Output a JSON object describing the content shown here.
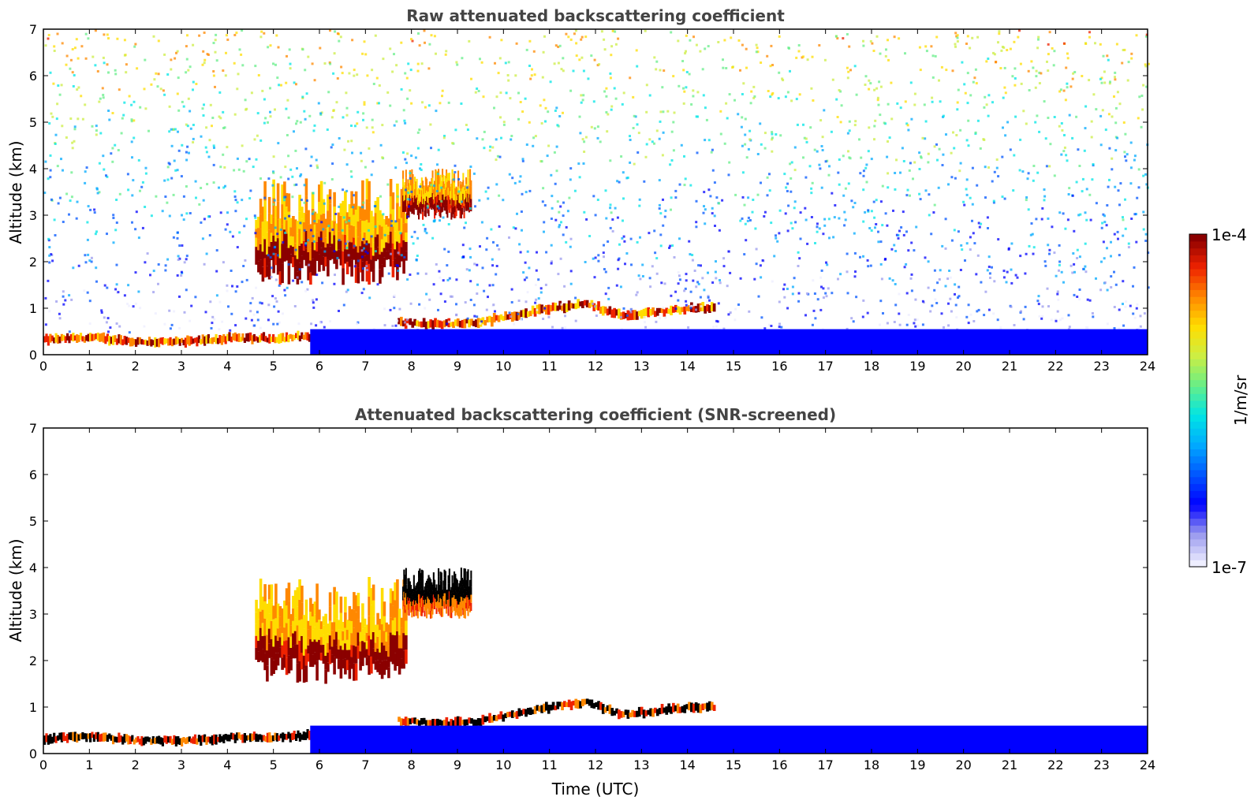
{
  "chart_data": [
    {
      "type": "heatmap",
      "title": "Raw attenuated backscattering coefficient",
      "xlabel": "",
      "ylabel": "Altitude (km)",
      "xlim": [
        0,
        24
      ],
      "ylim": [
        0,
        7
      ],
      "x_ticks": [
        "0",
        "1",
        "2",
        "3",
        "4",
        "5",
        "6",
        "7",
        "8",
        "9",
        "10",
        "11",
        "12",
        "13",
        "14",
        "15",
        "16",
        "17",
        "18",
        "19",
        "20",
        "21",
        "22",
        "23",
        "24"
      ],
      "y_ticks": [
        "0",
        "1",
        "2",
        "3",
        "4",
        "5",
        "6",
        "7"
      ],
      "features": [
        {
          "kind": "boundary_layer_top",
          "x": [
            0,
            1,
            2,
            3,
            4,
            5,
            5.8
          ],
          "y": [
            0.32,
            0.37,
            0.28,
            0.27,
            0.35,
            0.35,
            0.4
          ],
          "level": "high"
        },
        {
          "kind": "cloud_layer",
          "x_range": [
            4.6,
            7.9
          ],
          "y_range": [
            1.5,
            3.8
          ],
          "level": "high"
        },
        {
          "kind": "cloud_layer",
          "x_range": [
            7.8,
            9.3
          ],
          "y_range": [
            2.9,
            4.0
          ],
          "level": "high"
        },
        {
          "kind": "low_cloud_layer",
          "x": [
            7.7,
            8.5,
            9.5,
            10.2,
            11,
            11.8,
            12.5,
            13.2,
            14,
            14.6
          ],
          "y": [
            0.7,
            0.65,
            0.7,
            0.85,
            1.0,
            1.1,
            0.85,
            0.9,
            1.0,
            1.0
          ],
          "level": "high"
        },
        {
          "kind": "noise_region",
          "y_range": [
            0.5,
            7
          ],
          "level": "medium_to_high_with_altitude"
        },
        {
          "kind": "surface_layer",
          "x_range": [
            5.8,
            24
          ],
          "y_range": [
            0,
            0.55
          ],
          "level": "low"
        }
      ]
    },
    {
      "type": "heatmap",
      "title": "Attenuated backscattering coefficient (SNR-screened)",
      "xlabel": "Time (UTC)",
      "ylabel": "Altitude (km)",
      "xlim": [
        0,
        24
      ],
      "ylim": [
        0,
        7
      ],
      "x_ticks": [
        "0",
        "1",
        "2",
        "3",
        "4",
        "5",
        "6",
        "7",
        "8",
        "9",
        "10",
        "11",
        "12",
        "13",
        "14",
        "15",
        "16",
        "17",
        "18",
        "19",
        "20",
        "21",
        "22",
        "23",
        "24"
      ],
      "y_ticks": [
        "0",
        "1",
        "2",
        "3",
        "4",
        "5",
        "6",
        "7"
      ],
      "features": [
        {
          "kind": "boundary_layer_top",
          "x": [
            0,
            1,
            2,
            3,
            4,
            5,
            5.8
          ],
          "y": [
            0.32,
            0.37,
            0.28,
            0.27,
            0.35,
            0.35,
            0.4
          ],
          "level": "saturated"
        },
        {
          "kind": "cloud_layer",
          "x_range": [
            4.6,
            7.9
          ],
          "y_range": [
            1.5,
            3.8
          ],
          "level": "high"
        },
        {
          "kind": "cloud_layer",
          "x_range": [
            7.8,
            9.3
          ],
          "y_range": [
            2.9,
            4.0
          ],
          "level": "saturated"
        },
        {
          "kind": "low_cloud_layer",
          "x": [
            7.7,
            8.5,
            9.5,
            10.2,
            11,
            11.8,
            12.5,
            13.2,
            14,
            14.6
          ],
          "y": [
            0.7,
            0.65,
            0.7,
            0.85,
            1.0,
            1.1,
            0.85,
            0.9,
            1.0,
            1.0
          ],
          "level": "saturated"
        },
        {
          "kind": "surface_layer",
          "x_range": [
            5.8,
            24
          ],
          "y_range": [
            0,
            0.6
          ],
          "level": "low"
        }
      ]
    }
  ],
  "colorbar": {
    "label": "1/m/sr",
    "max_label": "1e-4",
    "min_label": "1e-7",
    "colors": [
      "#eeeeff",
      "#9999ee",
      "#0000ff",
      "#0055ff",
      "#00aaff",
      "#00e5e5",
      "#66ee88",
      "#ccee44",
      "#ffdd00",
      "#ff8800",
      "#ee2200",
      "#8b0000"
    ]
  }
}
